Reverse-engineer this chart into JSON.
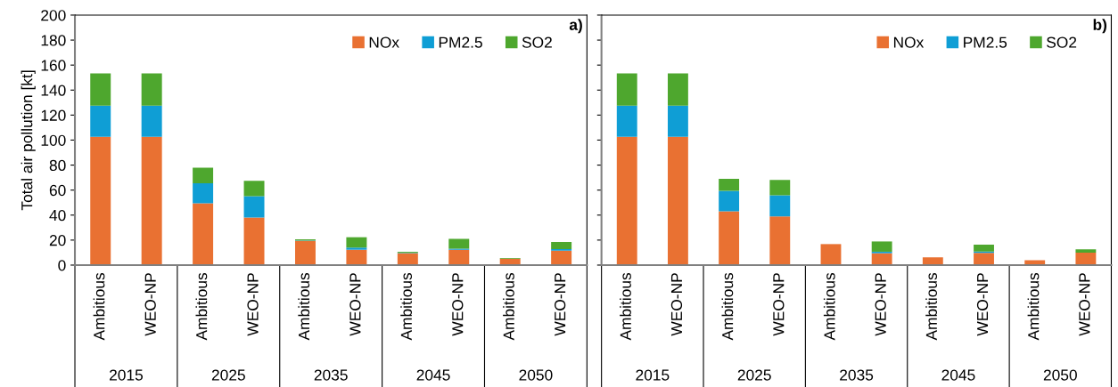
{
  "chart_data": [
    {
      "type": "bar",
      "stacked": true,
      "ylabel": "Total air pollution [kt]",
      "categories": [
        "Ambitious",
        "WEO-NP",
        "Ambitious",
        "WEO-NP",
        "Ambitious",
        "WEO-NP",
        "Ambitious",
        "WEO-NP",
        "Ambitious",
        "WEO-NP"
      ],
      "series": [
        {
          "name": "NOx",
          "color": "#e97132",
          "values": [
            102.7,
            102.7,
            49.5,
            38.1,
            19.4,
            12.3,
            9.5,
            12.3,
            5.2,
            11.6
          ]
        },
        {
          "name": "PM2.5",
          "color": "#0f9ed5",
          "values": [
            24.9,
            24.9,
            16,
            17,
            0.3,
            1.7,
            0.3,
            0.8,
            null,
            1.2
          ]
        },
        {
          "name": "SO2",
          "color": "#4ea72e",
          "values": [
            25.8,
            25.8,
            12.4,
            12.3,
            0.9,
            8.3,
            0.8,
            7.9,
            0.5,
            5.7
          ]
        }
      ],
      "ylim": [
        0,
        200
      ],
      "yticks": [
        0,
        20,
        40,
        60,
        80,
        100,
        120,
        140,
        160,
        180,
        200
      ],
      "legend": "top right",
      "grid": false,
      "annotations": [
        "a)",
        "2015",
        "2025",
        "2035",
        "2045",
        "2050"
      ]
    },
    {
      "type": "bar",
      "stacked": true,
      "categories": [
        "Ambitious",
        "WEO-NP",
        "Ambitious",
        "WEO-NP",
        "Ambitious",
        "WEO-NP",
        "Ambitious",
        "WEO-NP",
        "Ambitious",
        "WEO-NP"
      ],
      "series": [
        {
          "name": "NOx",
          "color": "#e97132",
          "values": [
            102.7,
            102.7,
            43.1,
            39,
            16.8,
            9.5,
            6.2,
            9.7,
            3.9,
            9.9
          ]
        },
        {
          "name": "PM2.5",
          "color": "#0f9ed5",
          "values": [
            24.9,
            24.9,
            16.3,
            16.9,
            0,
            1.2,
            0,
            1.2,
            0,
            null
          ]
        },
        {
          "name": "SO2",
          "color": "#4ea72e",
          "values": [
            25.8,
            25.8,
            9.7,
            12.3,
            0,
            8.2,
            0,
            5.4,
            null,
            2.8
          ]
        }
      ],
      "ylim": [
        0,
        200
      ],
      "yticks": [
        0,
        20,
        40,
        60,
        80,
        100,
        120,
        140,
        160,
        180,
        200
      ],
      "tick_labels": "x",
      "legend": "top right",
      "grid": false,
      "annotations": [
        "b)",
        "2015",
        "2025",
        "2035",
        "2045",
        "2050"
      ]
    }
  ]
}
